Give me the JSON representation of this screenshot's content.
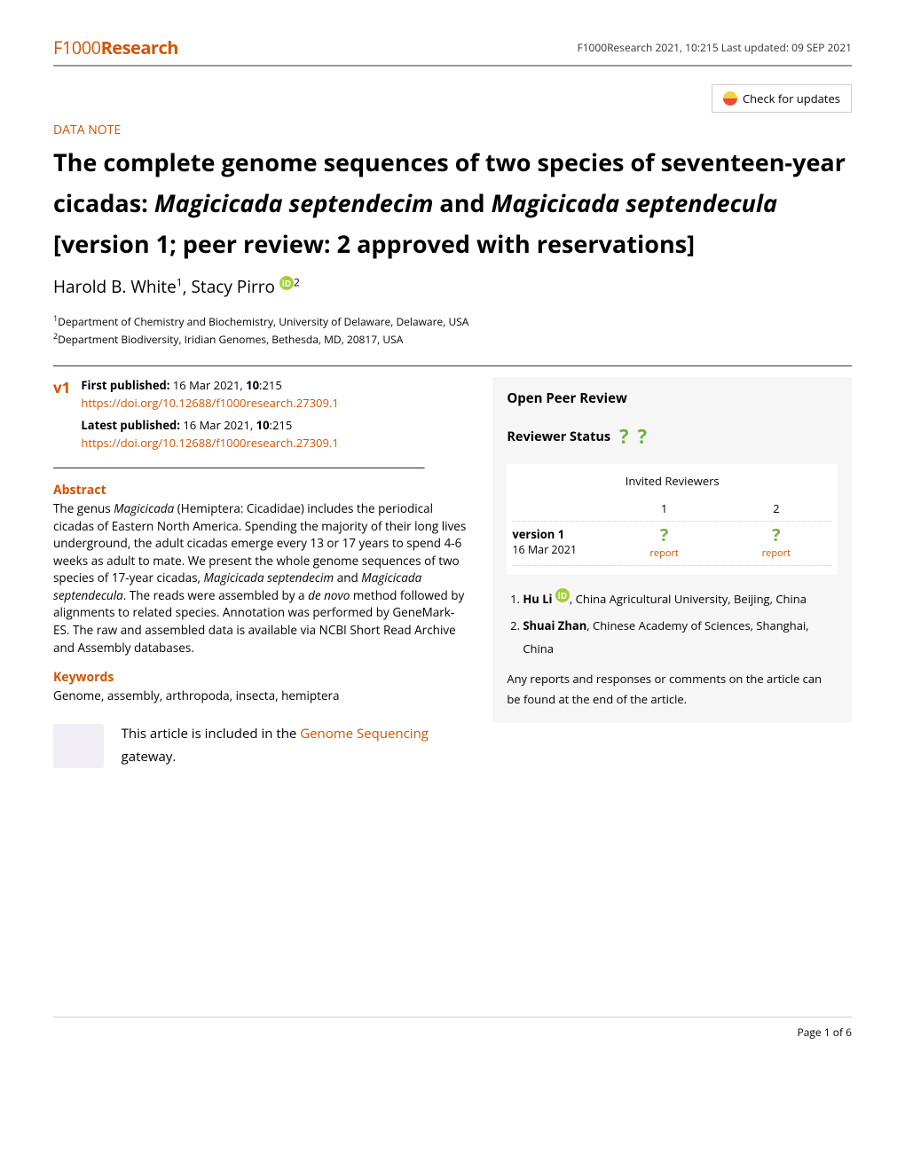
{
  "header": {
    "logo_main": "F1000",
    "logo_sub": "Research",
    "updated_text": "F1000Research 2021, 10:215 Last updated: 09 SEP 2021",
    "check_updates": "Check for updates"
  },
  "article": {
    "type": "DATA NOTE",
    "title_html": "The complete genome sequences of two species of seventeen-year cicadas: <em>Magicicada septendecim</em> and <em>Magicicada septendecula</em> [version 1; peer review: 2 approved with reservations]",
    "authors": [
      {
        "name": "Harold B. White",
        "aff": "1",
        "orcid": false
      },
      {
        "name": "Stacy Pirro",
        "aff": "2",
        "orcid": true
      }
    ],
    "affiliations": [
      "Department of Chemistry and Biochemistry, University of Delaware, Delaware, USA",
      "Department Biodiversity, Iridian Genomes, Bethesda, MD, 20817, USA"
    ]
  },
  "pub": {
    "version": "v1",
    "first_label": "First published:",
    "first_text": "16 Mar 2021, ",
    "first_vol": "10",
    "first_pg": ":215",
    "first_doi": "https://doi.org/10.12688/f1000research.27309.1",
    "latest_label": "Latest published:",
    "latest_text": "16 Mar 2021, ",
    "latest_vol": "10",
    "latest_pg": ":215",
    "latest_doi": "https://doi.org/10.12688/f1000research.27309.1"
  },
  "abstract": {
    "heading": "Abstract",
    "text_html": "The genus <em>Magicicada</em> (Hemiptera: Cicadidae) includes the periodical cicadas of Eastern North America. Spending the majority of their long lives underground, the adult cicadas emerge every 13 or 17 years to spend 4-6 weeks as adult to mate. We present the whole genome sequences of two species of 17-year cicadas, <em>Magicicada septendecim</em> and <em>Magicicada septendecula</em>. The reads were assembled by a <em>de novo</em> method followed by alignments to related species. Annotation was performed by GeneMark-ES. The raw and assembled data is available via NCBI Short Read Archive and Assembly databases."
  },
  "keywords": {
    "heading": "Keywords",
    "text": "Genome, assembly, arthropoda, insecta, hemiptera"
  },
  "gateway": {
    "prefix": "This article is included in the ",
    "link": "Genome Sequencing",
    "suffix": " gateway."
  },
  "opr": {
    "title": "Open Peer Review",
    "status_label": "Reviewer Status",
    "invited": "Invited Reviewers",
    "cols": [
      "1",
      "2"
    ],
    "version_label": "version 1",
    "version_date": "16 Mar 2021",
    "report": "report",
    "reviewers": [
      {
        "name": "Hu Li",
        "orcid": true,
        "affil": ", China Agricultural University, Beijing, China"
      },
      {
        "name": "Shuai Zhan",
        "orcid": false,
        "affil": ", Chinese Academy of Sciences, Shanghai, China"
      }
    ],
    "note": "Any reports and responses or comments on the article can be found at the end of the article."
  },
  "footer": {
    "page": "Page 1 of 6"
  },
  "colors": {
    "brand": "#d35400",
    "approve_q": "#6fb03f",
    "box_bg": "#f6f6f6"
  }
}
